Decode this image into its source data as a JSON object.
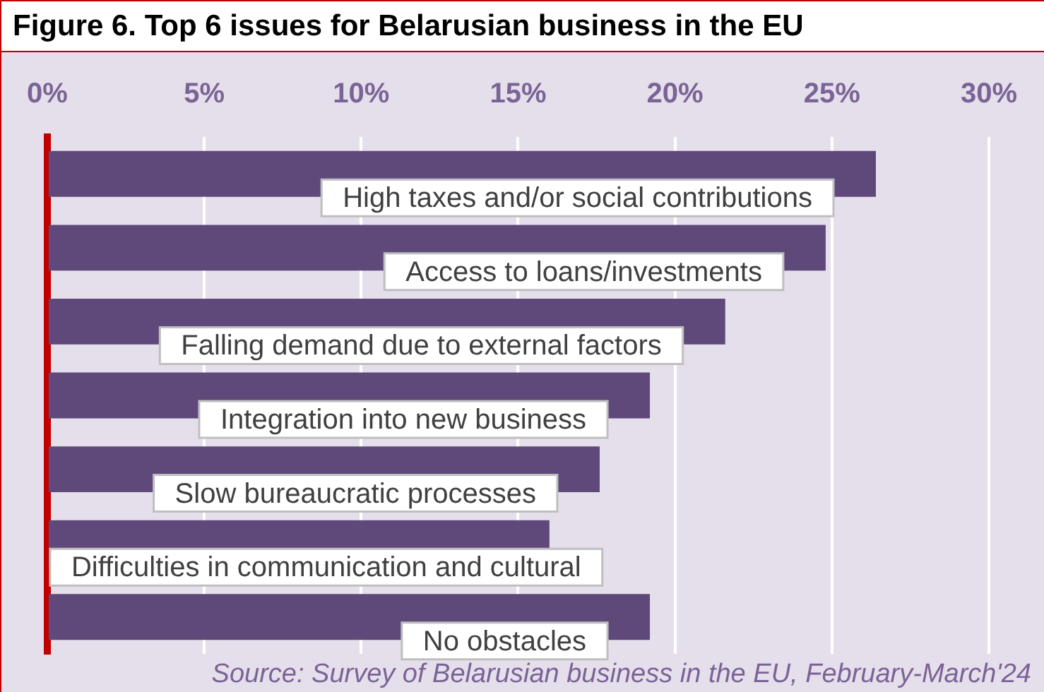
{
  "chart_data": {
    "type": "bar",
    "orientation": "horizontal",
    "title": "Figure 6. Top 6 issues for Belarusian business in the EU",
    "categories": [
      "High taxes and/or social contributions",
      "Access to loans/investments",
      "Falling demand due to external factors",
      "Integration into new business",
      "Slow bureaucratic processes",
      "Difficulties in communication and cultural",
      "No obstacles"
    ],
    "values": [
      26.4,
      24.8,
      21.6,
      19.2,
      17.6,
      16.0,
      19.2
    ],
    "color": "#5f497a",
    "xlim": [
      0,
      30
    ],
    "xticks": [
      {
        "value": 0,
        "label": "0%"
      },
      {
        "value": 5,
        "label": "5%"
      },
      {
        "value": 10,
        "label": "10%"
      },
      {
        "value": 15,
        "label": "15%"
      },
      {
        "value": 20,
        "label": "20%"
      },
      {
        "value": 25,
        "label": "25%"
      },
      {
        "value": 30,
        "label": "30%"
      }
    ],
    "grid": "x",
    "legend": false,
    "annotations": [
      "Source: Survey of Belarusian business in the EU, February-March'24"
    ]
  }
}
